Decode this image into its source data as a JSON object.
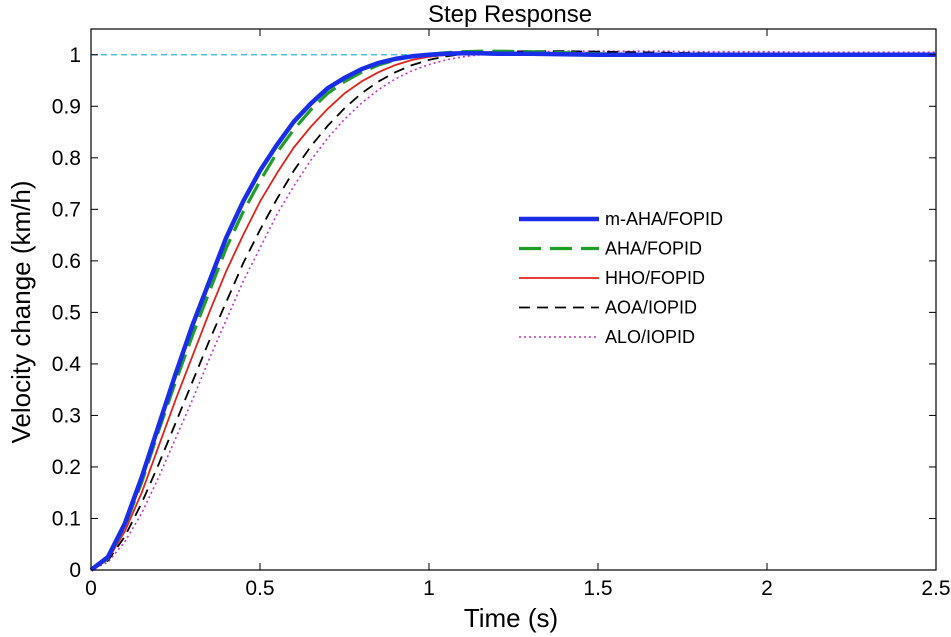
{
  "chart_data": {
    "type": "line",
    "title": "Step Response",
    "xlabel": "Time (s)",
    "ylabel": "Velocity change (km/h)",
    "xlim": [
      0,
      2.5
    ],
    "ylim": [
      0,
      1.05
    ],
    "xticks": [
      0,
      0.5,
      1,
      1.5,
      2,
      2.5
    ],
    "yticks": [
      0,
      0.1,
      0.2,
      0.3,
      0.4,
      0.5,
      0.6,
      0.7,
      0.8,
      0.9,
      1
    ],
    "xtick_labels": [
      "0",
      "0.5",
      "1",
      "1.5",
      "2",
      "2.5"
    ],
    "ytick_labels": [
      "0",
      "0.1",
      "0.2",
      "0.3",
      "0.4",
      "0.5",
      "0.6",
      "0.7",
      "0.8",
      "0.9",
      "1"
    ],
    "grid": false,
    "legend_position": "right-center",
    "reference_line": {
      "y": 1,
      "color": "#2bb5d8",
      "style": "dashed"
    },
    "x": [
      0,
      0.05,
      0.1,
      0.15,
      0.2,
      0.25,
      0.3,
      0.35,
      0.4,
      0.45,
      0.5,
      0.55,
      0.6,
      0.65,
      0.7,
      0.75,
      0.8,
      0.85,
      0.9,
      0.95,
      1.0,
      1.05,
      1.1,
      1.15,
      1.2,
      1.3,
      1.4,
      1.5,
      1.6,
      1.7,
      1.8,
      1.9,
      2.0,
      2.1,
      2.2,
      2.3,
      2.4,
      2.5
    ],
    "series": [
      {
        "name": "m-AHA/FOPID",
        "color": "#1a2de8",
        "style": "solid-thick",
        "values": [
          0,
          0.025,
          0.09,
          0.18,
          0.28,
          0.38,
          0.475,
          0.56,
          0.645,
          0.715,
          0.775,
          0.825,
          0.87,
          0.905,
          0.935,
          0.955,
          0.972,
          0.984,
          0.992,
          0.997,
          1.0,
          1.002,
          1.003,
          1.003,
          1.002,
          1.002,
          1.001,
          1.0,
          1.0,
          1.0,
          1.0,
          1.0,
          1.0,
          1.0,
          1.0,
          1.0,
          1.0,
          1.0
        ]
      },
      {
        "name": "AHA/FOPID",
        "color": "#1f9e2a",
        "style": "long-dash",
        "values": [
          0,
          0.022,
          0.085,
          0.17,
          0.27,
          0.365,
          0.455,
          0.54,
          0.625,
          0.695,
          0.755,
          0.81,
          0.855,
          0.893,
          0.925,
          0.948,
          0.966,
          0.98,
          0.99,
          0.997,
          1.001,
          1.004,
          1.006,
          1.007,
          1.007,
          1.006,
          1.004,
          1.002,
          1.001,
          1.0,
          1.0,
          1.0,
          1.0,
          1.0,
          1.0,
          1.0,
          1.0,
          1.0
        ]
      },
      {
        "name": "HHO/FOPID",
        "color": "#e0241b",
        "style": "solid",
        "values": [
          0,
          0.02,
          0.075,
          0.15,
          0.24,
          0.33,
          0.415,
          0.5,
          0.58,
          0.65,
          0.715,
          0.77,
          0.82,
          0.86,
          0.895,
          0.925,
          0.948,
          0.966,
          0.98,
          0.99,
          0.996,
          1.0,
          1.002,
          1.003,
          1.004,
          1.004,
          1.003,
          1.002,
          1.001,
          1.001,
          1.0,
          1.0,
          1.0,
          1.0,
          1.0,
          1.0,
          1.0,
          1.0
        ]
      },
      {
        "name": "AOA/IOPID",
        "color": "#000000",
        "style": "dashed",
        "values": [
          0,
          0.018,
          0.065,
          0.13,
          0.205,
          0.285,
          0.365,
          0.445,
          0.52,
          0.595,
          0.66,
          0.72,
          0.775,
          0.822,
          0.862,
          0.896,
          0.925,
          0.948,
          0.966,
          0.98,
          0.99,
          0.997,
          1.001,
          1.004,
          1.006,
          1.007,
          1.007,
          1.006,
          1.005,
          1.004,
          1.003,
          1.002,
          1.002,
          1.001,
          1.001,
          1.001,
          1.0,
          1.0
        ]
      },
      {
        "name": "ALO/IOPID",
        "color": "#c236c2",
        "style": "dotted",
        "values": [
          0,
          0.015,
          0.055,
          0.11,
          0.18,
          0.255,
          0.33,
          0.41,
          0.485,
          0.56,
          0.625,
          0.69,
          0.745,
          0.795,
          0.838,
          0.875,
          0.906,
          0.932,
          0.953,
          0.969,
          0.981,
          0.99,
          0.996,
          1.0,
          1.003,
          1.006,
          1.007,
          1.007,
          1.007,
          1.007,
          1.006,
          1.006,
          1.006,
          1.005,
          1.005,
          1.005,
          1.005,
          1.005
        ]
      }
    ]
  }
}
